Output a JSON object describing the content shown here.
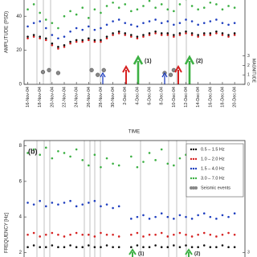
{
  "chart_data": [
    {
      "type": "scatter",
      "ylabel": "AMPLITUDE (PSD)",
      "y2label": "MAGNITUDE",
      "xlabel": "TIME",
      "x": [
        0,
        1,
        2,
        3,
        4,
        5,
        6,
        7,
        8,
        9,
        10,
        11,
        12,
        13,
        14,
        15,
        16,
        17,
        18,
        19,
        20,
        21,
        22,
        23,
        24,
        25,
        26,
        27,
        28,
        29,
        30,
        31,
        32,
        33,
        34
      ],
      "xlim": [
        -0.6,
        35.7
      ],
      "xticks": [
        {
          "value": 0,
          "label": "16-Nov-04"
        },
        {
          "value": 2,
          "label": "18-Nov-04"
        },
        {
          "value": 4,
          "label": "20-Nov-04"
        },
        {
          "value": 6,
          "label": "22-Nov-04"
        },
        {
          "value": 8,
          "label": "24-Nov-04"
        },
        {
          "value": 10,
          "label": "26-Nov-04"
        },
        {
          "value": 12,
          "label": "28-Nov-04"
        },
        {
          "value": 14,
          "label": "30-Nov-04"
        },
        {
          "value": 16,
          "label": "2-Dec-04"
        },
        {
          "value": 18,
          "label": "4-Dec-04"
        },
        {
          "value": 20,
          "label": "6-Dec-04"
        },
        {
          "value": 22,
          "label": "8-Dec-04"
        },
        {
          "value": 24,
          "label": "10-Dec-04"
        },
        {
          "value": 26,
          "label": "12-Dec-04"
        },
        {
          "value": 28,
          "label": "14-Dec-04"
        },
        {
          "value": 30,
          "label": "16-Dec-04"
        },
        {
          "value": 32,
          "label": "18-Dec-04"
        },
        {
          "value": 34,
          "label": "20-Dec-04"
        }
      ],
      "ylim": [
        0,
        50
      ],
      "yticks": [
        0,
        20,
        40
      ],
      "y2lim": [
        0,
        9
      ],
      "y2ticks": [
        0,
        1,
        2,
        3
      ],
      "annotations": [
        "(1)",
        "(2)"
      ],
      "series": [
        {
          "color": "#3cb043",
          "values": [
            44,
            47,
            42,
            38,
            36,
            33,
            40,
            43,
            41,
            45,
            39,
            44,
            42,
            46,
            48,
            45,
            47,
            43,
            44,
            46,
            49,
            45,
            47,
            44,
            43,
            47,
            50,
            46,
            44,
            45,
            48,
            47,
            44,
            46,
            45
          ]
        },
        {
          "color": "#1f3fbf",
          "values": [
            34,
            36,
            37,
            33,
            29,
            27,
            28,
            31,
            33,
            32,
            34,
            32,
            33,
            35,
            37,
            38,
            36,
            35,
            34,
            36,
            37,
            38,
            36,
            37,
            35,
            36,
            38,
            37,
            35,
            36,
            37,
            38,
            36,
            35,
            36
          ]
        },
        {
          "color": "#d62020",
          "values": [
            27,
            28,
            27,
            26,
            23,
            21,
            22,
            24,
            25,
            25,
            26,
            25,
            25,
            27,
            29,
            30,
            29,
            28,
            27,
            28,
            29,
            30,
            29,
            29,
            28,
            29,
            30,
            29,
            28,
            29,
            29,
            30,
            29,
            28,
            29
          ]
        },
        {
          "color": "#111111",
          "values": [
            28,
            29,
            28,
            27,
            24,
            22,
            23,
            25,
            26,
            26,
            27,
            26,
            26,
            28,
            30,
            31,
            30,
            29,
            28,
            29,
            30,
            31,
            30,
            30,
            29,
            30,
            31,
            30,
            29,
            30,
            30,
            31,
            30,
            29,
            30
          ]
        },
        {
          "color": "#888888",
          "axis": "y2",
          "x": [
            2.5,
            3.5,
            5,
            10.5,
            11.5,
            12.5,
            22.5,
            23.5,
            24
          ],
          "values": [
            1.3,
            1.5,
            1.2,
            1.5,
            1.0,
            1.5,
            1.2,
            1.0,
            1.5
          ]
        }
      ]
    },
    {
      "type": "scatter",
      "panel_label": "(b)",
      "ylabel": "FREQUENCY [Hz]",
      "x": [
        0,
        1,
        2,
        3,
        4,
        5,
        6,
        7,
        8,
        9,
        10,
        11,
        12,
        13,
        14,
        15,
        16,
        17,
        18,
        19,
        20,
        21,
        22,
        23,
        24,
        25,
        26,
        27,
        28,
        29,
        30,
        31,
        32,
        33,
        34
      ],
      "xlim": [
        -0.6,
        35.7
      ],
      "ylim": [
        1.7,
        8.3
      ],
      "yticks": [
        2,
        4,
        6,
        8
      ],
      "y2lim": [
        2.7,
        9.3
      ],
      "y2ticks": [
        3
      ],
      "annotations": [
        "(1)",
        "(2)"
      ],
      "series": [
        {
          "name": "0.5 – 1.5 Hz",
          "color": "#111111",
          "values": [
            2.3,
            2.4,
            2.3,
            2.3,
            2.4,
            2.3,
            2.3,
            2.4,
            2.3,
            2.3,
            2.4,
            2.3,
            2.3,
            2.4,
            2.3,
            2.3,
            null,
            2.3,
            2.4,
            2.3,
            2.3,
            2.4,
            2.3,
            2.3,
            2.4,
            2.3,
            2.4,
            2.3,
            2.3,
            2.4,
            2.3,
            2.3,
            2.4,
            2.3,
            2.3
          ]
        },
        {
          "name": "1.0 – 2.0 Hz",
          "color": "#d62020",
          "values": [
            3.0,
            3.1,
            2.9,
            3.0,
            3.1,
            3.0,
            2.9,
            3.0,
            3.1,
            3.0,
            3.0,
            2.9,
            3.1,
            3.0,
            3.0,
            2.9,
            null,
            3.0,
            3.1,
            2.9,
            3.0,
            3.0,
            3.1,
            2.9,
            3.0,
            3.1,
            3.0,
            2.9,
            3.0,
            3.1,
            3.0,
            2.9,
            3.0,
            3.1,
            3.0
          ]
        },
        {
          "name": "1.5 – 4.0 Hz",
          "color": "#1f3fbf",
          "values": [
            4.8,
            4.7,
            4.9,
            4.6,
            4.8,
            4.7,
            4.8,
            4.9,
            4.6,
            4.7,
            4.8,
            4.9,
            4.6,
            4.7,
            4.5,
            4.6,
            null,
            3.9,
            4.0,
            4.1,
            3.9,
            4.0,
            4.2,
            4.0,
            3.9,
            4.1,
            4.0,
            3.9,
            4.1,
            4.2,
            4.0,
            3.9,
            4.1,
            4.0,
            4.2
          ]
        },
        {
          "name": "3.0 – 7.0 Hz",
          "color": "#3cb043",
          "values": [
            7.6,
            7.8,
            7.5,
            7.9,
            7.3,
            7.7,
            7.6,
            7.4,
            7.8,
            7.2,
            6.9,
            7.5,
            6.8,
            7.3,
            7.0,
            6.9,
            null,
            7.4,
            6.8,
            7.1,
            7.6,
            7.2,
            7.8,
            7.0,
            6.9,
            7.3,
            7.5,
            6.7,
            7.2,
            7.0,
            7.4,
            6.9,
            7.1,
            7.3,
            7.0
          ]
        },
        {
          "name": "Seismic events",
          "color": "#888888",
          "axis": "y2",
          "x": [],
          "values": []
        }
      ]
    }
  ]
}
